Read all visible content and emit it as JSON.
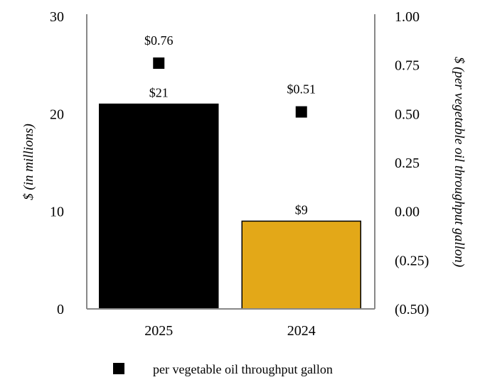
{
  "chart_data": {
    "type": "bar",
    "categories": [
      "2025",
      "2024"
    ],
    "series": [
      {
        "name": "$ (in millions)",
        "type": "bar",
        "axis": "left",
        "values": [
          21,
          9
        ],
        "labels": [
          "$21",
          "$9"
        ],
        "colors": [
          "#000000",
          "#E3A818"
        ]
      },
      {
        "name": "per vegetable oil throughput gallon",
        "type": "scatter",
        "axis": "right",
        "values": [
          0.76,
          0.51
        ],
        "labels": [
          "$0.76",
          "$0.51"
        ],
        "color": "#000000"
      }
    ],
    "ylabel": "$ (in millions)",
    "y2label": "$ (per vegetable oil throughput gallon)",
    "ylim": [
      0,
      30
    ],
    "y2lim": [
      -0.5,
      1.0
    ],
    "yticks": [
      "0",
      "10",
      "20",
      "30"
    ],
    "y2ticks": [
      "(0.50)",
      "(0.25)",
      "0.00",
      "0.25",
      "0.50",
      "0.75",
      "1.00"
    ],
    "legend": {
      "position": "bottom",
      "entries": [
        "per vegetable oil throughput gallon"
      ]
    },
    "grid": false
  }
}
